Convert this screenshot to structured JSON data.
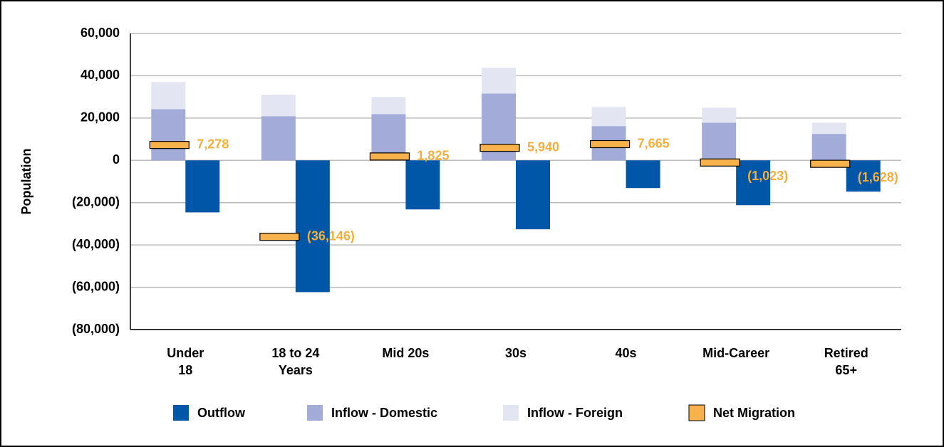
{
  "chart_data": {
    "type": "bar",
    "y_label": "Population",
    "categories": [
      "Under\n18",
      "18 to 24\nYears",
      "Mid 20s",
      "30s",
      "40s",
      "Mid-Career",
      "Retired\n65+"
    ],
    "series": [
      {
        "name": "Outflow",
        "color": "#0057a8",
        "values": [
          -24600,
          -62300,
          -23200,
          -32600,
          -13100,
          -21200,
          -14800
        ]
      },
      {
        "name": "Inflow - Domestic",
        "color": "#a3acd8",
        "values": [
          24200,
          20900,
          21900,
          31600,
          16200,
          17800,
          12500
        ]
      },
      {
        "name": "Inflow - Foreign",
        "color": "#e3e5f3",
        "values": [
          12800,
          10100,
          8100,
          12200,
          9000,
          7100,
          5300
        ]
      },
      {
        "name": "Net Migration",
        "color": "#f7b24b",
        "values": [
          7278,
          -36146,
          1825,
          5940,
          7665,
          -1023,
          -1628
        ],
        "value_labels": [
          "7,278",
          "(36,146)",
          "1,825",
          "5,940",
          "7,665",
          "(1,023)",
          "(1,628)"
        ]
      }
    ],
    "label_color": "#f5ae3c",
    "ylim": [
      -80000,
      60000
    ],
    "yticks": [
      {
        "value": -80000,
        "label": "(80,000)"
      },
      {
        "value": -60000,
        "label": "(60,000)"
      },
      {
        "value": -40000,
        "label": "(40,000)"
      },
      {
        "value": -20000,
        "label": "(20,000)"
      },
      0,
      {
        "value": 20000,
        "label": "20,000"
      },
      {
        "value": 40000,
        "label": "40,000"
      },
      {
        "value": 60000,
        "label": "60,000"
      }
    ],
    "grid": true,
    "legend": "bottom"
  }
}
